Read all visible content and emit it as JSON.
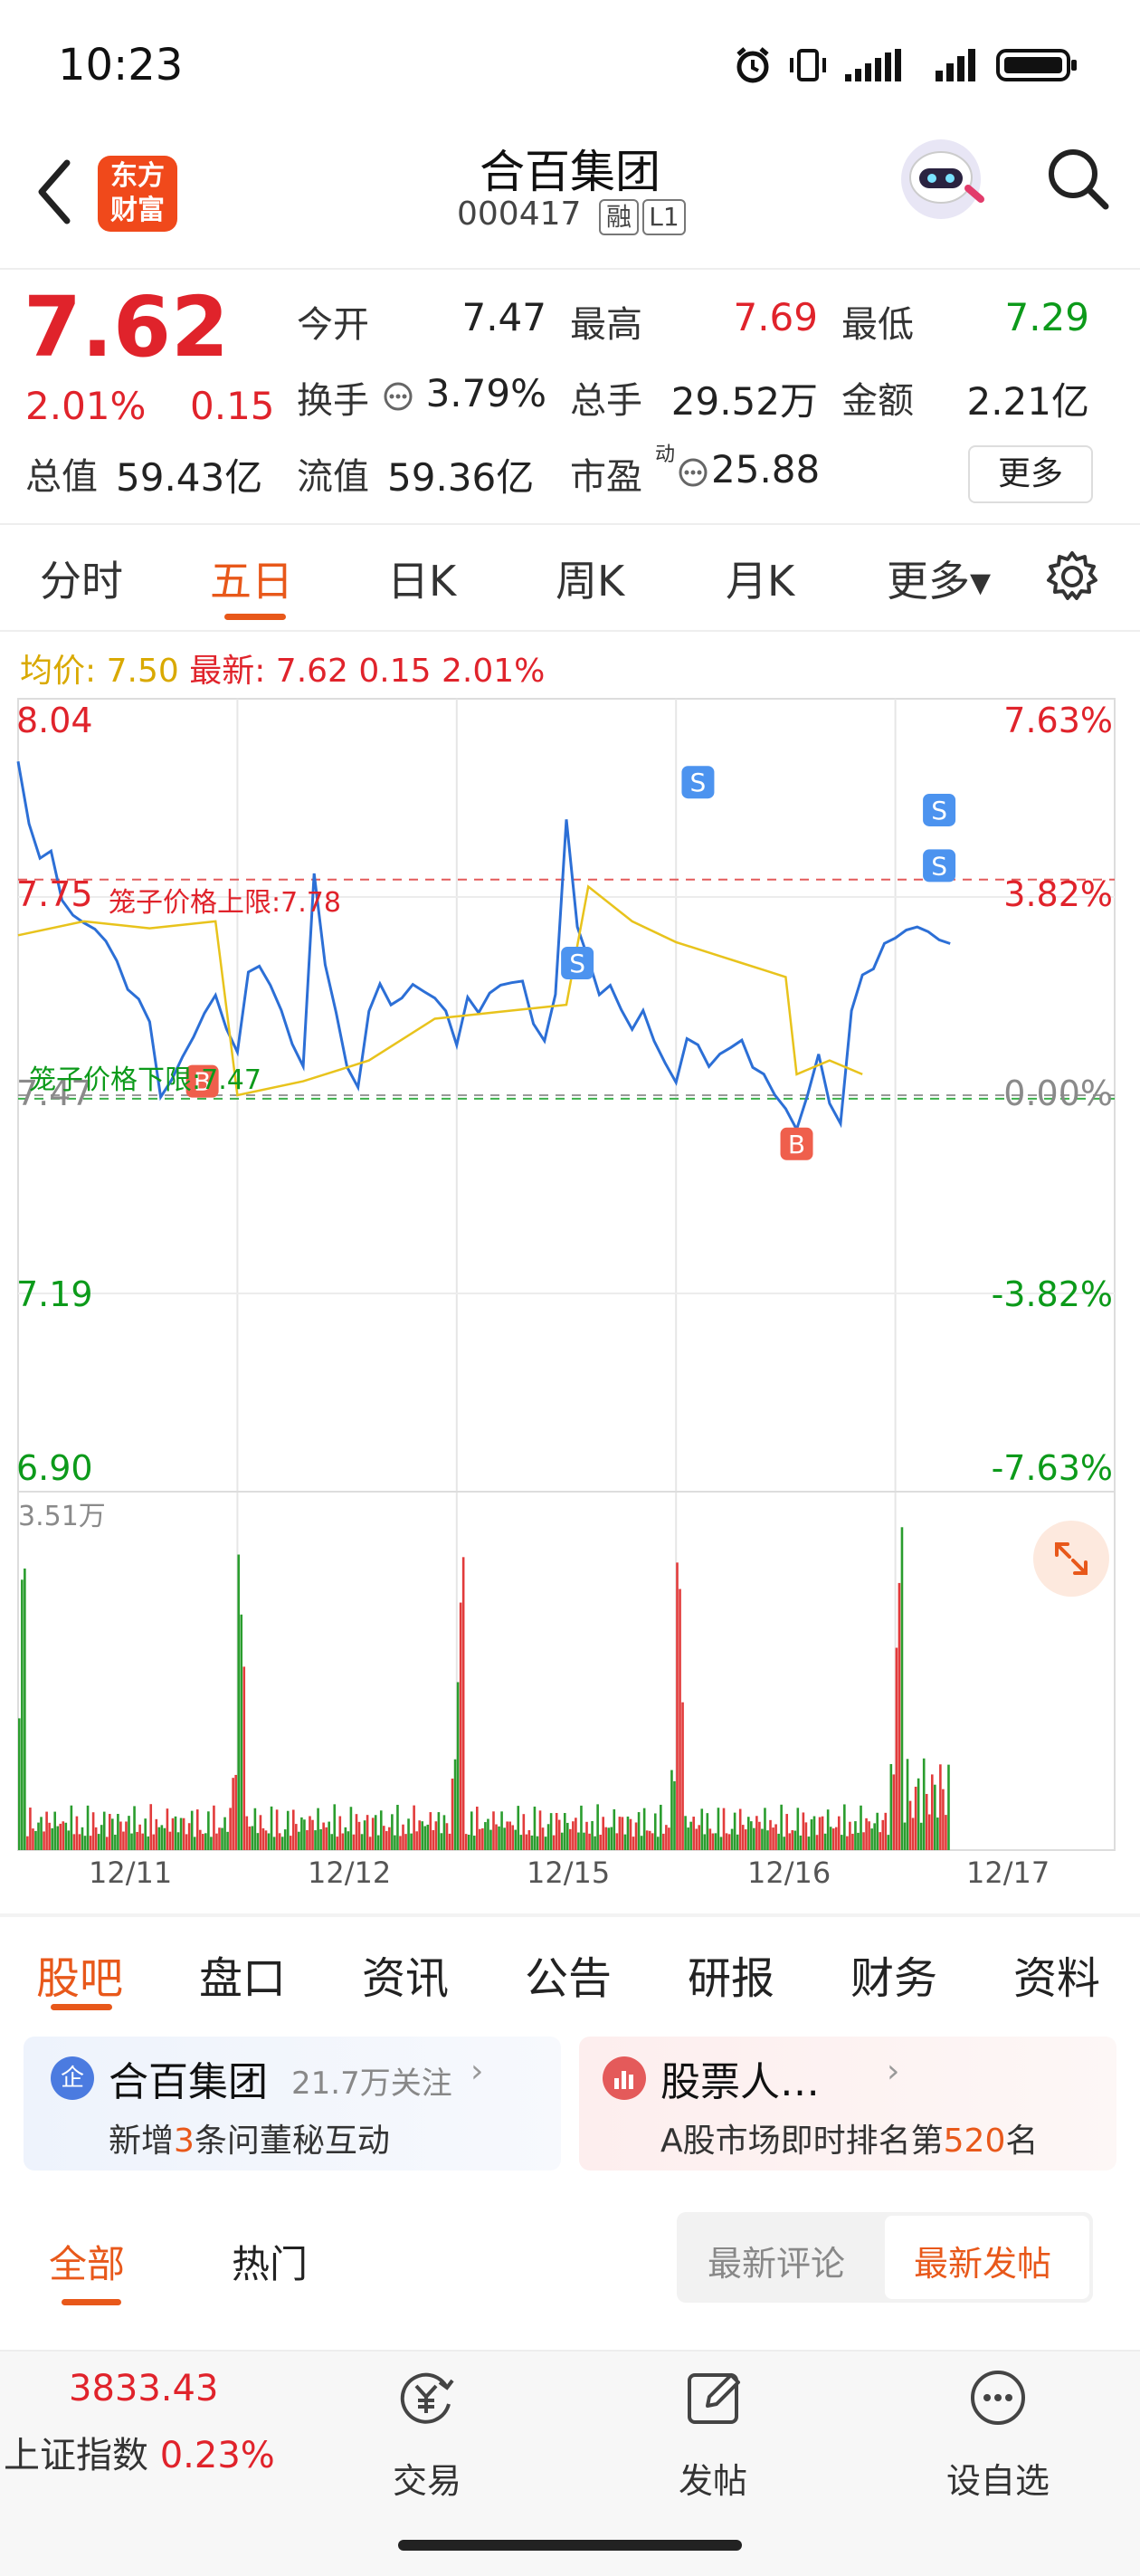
{
  "status_bar": {
    "time": "10:23"
  },
  "header": {
    "title": "合百集团",
    "code": "000417",
    "tag_margin": "融",
    "tag_level": "L1",
    "logo_line1": "东方",
    "logo_line2": "财富"
  },
  "quote": {
    "price": "7.62",
    "change_pct": "2.01%",
    "change": "0.15",
    "open_label": "今开",
    "open": "7.47",
    "high_label": "最高",
    "high": "7.69",
    "low_label": "最低",
    "low": "7.29",
    "turnover_label": "换手",
    "turnover": "3.79%",
    "volume_label": "总手",
    "volume": "29.52万",
    "amount_label": "金额",
    "amount": "2.21亿",
    "mcap_label": "总值",
    "mcap": "59.43亿",
    "float_label": "流值",
    "float_mcap": "59.36亿",
    "pe_label": "市盈",
    "pe_sup": "动",
    "pe": "25.88",
    "more": "更多"
  },
  "chart_tabs": [
    "分时",
    "五日",
    "日K",
    "周K",
    "月K",
    "更多▾"
  ],
  "chart_tab_active": 1,
  "chart_info": {
    "avg_label": "均价:",
    "avg": "7.50",
    "latest_label": "最新:",
    "latest": "7.62 0.15 2.01%"
  },
  "chart_data": {
    "type": "line",
    "title": "",
    "y_price_ticks": [
      "8.04",
      "7.75",
      "7.47",
      "7.19",
      "6.90"
    ],
    "y_pct_ticks": [
      "7.63%",
      "3.82%",
      "0.00%",
      "-3.82%",
      "-7.63%"
    ],
    "ylim": [
      6.9,
      8.04
    ],
    "x_dates": [
      "12/11",
      "12/12",
      "12/15",
      "12/16",
      "12/17"
    ],
    "upper_limit_label": "笼子价格上限:7.78",
    "lower_limit_label": "笼子价格下限:7.47",
    "volume_max_label": "3.51万",
    "series": [
      {
        "name": "",
        "color": "#2c6fd6",
        "x": [
          0,
          0.05,
          0.1,
          0.15,
          0.2,
          0.25,
          0.3,
          0.35,
          0.4,
          0.45,
          0.5,
          0.55,
          0.6,
          0.65,
          0.7,
          0.75,
          0.8,
          0.85,
          0.9,
          0.95,
          1.0,
          1.05,
          1.1,
          1.15,
          1.2,
          1.25,
          1.3,
          1.35,
          1.4,
          1.45,
          1.5,
          1.55,
          1.6,
          1.65,
          1.7,
          1.75,
          1.8,
          1.85,
          1.9,
          1.95,
          2.0,
          2.05,
          2.1,
          2.15,
          2.2,
          2.25,
          2.3,
          2.35,
          2.4,
          2.45,
          2.5,
          2.55,
          2.6,
          2.65,
          2.7,
          2.75,
          2.8,
          2.85,
          2.9,
          2.95,
          3.0,
          3.05,
          3.1,
          3.15,
          3.2,
          3.25,
          3.3,
          3.35,
          3.4,
          3.45,
          3.5,
          3.55,
          3.6,
          3.65,
          3.7,
          3.75,
          3.8,
          3.85,
          3.9,
          3.95,
          4.0,
          4.05,
          4.1,
          4.15,
          4.2,
          4.25
        ],
        "y": [
          7.95,
          7.85,
          7.8,
          7.82,
          7.76,
          7.74,
          7.72,
          7.7,
          7.68,
          7.66,
          7.63,
          7.62,
          7.58,
          7.46,
          7.48,
          7.52,
          7.56,
          7.6,
          7.62,
          7.56,
          7.52,
          7.64,
          7.66,
          7.64,
          7.6,
          7.54,
          7.5,
          7.78,
          7.66,
          7.6,
          7.52,
          7.48,
          7.58,
          7.62,
          7.6,
          7.62,
          7.64,
          7.62,
          7.6,
          7.58,
          7.54,
          7.62,
          7.6,
          7.62,
          7.62,
          7.62,
          7.63,
          7.58,
          7.56,
          7.62,
          7.86,
          7.7,
          7.66,
          7.62,
          7.64,
          7.6,
          7.56,
          7.58,
          7.54,
          7.52,
          7.5,
          7.56,
          7.54,
          7.5,
          7.52,
          7.54,
          7.56,
          7.52,
          7.5,
          7.46,
          7.44,
          7.42,
          7.48,
          7.54,
          7.46,
          7.42,
          7.58,
          7.64,
          7.66,
          7.7,
          7.7,
          7.7,
          7.7,
          7.7,
          7.7,
          7.7
        ]
      },
      {
        "name": "",
        "color": "#e8c31c",
        "x": [
          0,
          0.3,
          0.6,
          0.9,
          1.0,
          1.3,
          1.5,
          1.6,
          1.9,
          2.2,
          2.5,
          2.6,
          2.8,
          3.0,
          3.1,
          3.2,
          3.3,
          3.4,
          3.5,
          3.55,
          3.7,
          3.85
        ],
        "y": [
          7.7,
          7.72,
          7.71,
          7.72,
          7.47,
          7.49,
          7.51,
          7.52,
          7.58,
          7.59,
          7.6,
          7.77,
          7.72,
          7.69,
          7.68,
          7.67,
          7.66,
          7.65,
          7.64,
          7.5,
          7.52,
          7.5
        ]
      }
    ],
    "markers": [
      {
        "type": "B",
        "label": "B"
      },
      {
        "type": "B",
        "label": "B"
      },
      {
        "type": "S",
        "label": "S"
      },
      {
        "type": "S",
        "label": "S"
      },
      {
        "type": "S",
        "label": "S"
      },
      {
        "type": "S",
        "label": "S"
      }
    ]
  },
  "bottom_tabs": [
    "股吧",
    "盘口",
    "资讯",
    "公告",
    "研报",
    "财务",
    "资料"
  ],
  "bottom_tab_active": 0,
  "cards": [
    {
      "icon": "企",
      "title": "合百集团",
      "follow": "21.7万关注",
      "desc_pre": "新增",
      "desc_num": "3",
      "desc_post": "条问董秘互动"
    },
    {
      "title": "股票人…",
      "desc_pre": "A股市场即时排名第",
      "desc_num": "520",
      "desc_post": "名"
    }
  ],
  "filter": {
    "all": "全部",
    "hot": "热门",
    "latest_comment": "最新评论",
    "latest_post": "最新发帖"
  },
  "bottom_nav": {
    "index_value": "3833.43",
    "index_name": "上证指数",
    "index_change": "0.23%",
    "trade": "交易",
    "post": "发帖",
    "watch": "设自选"
  }
}
